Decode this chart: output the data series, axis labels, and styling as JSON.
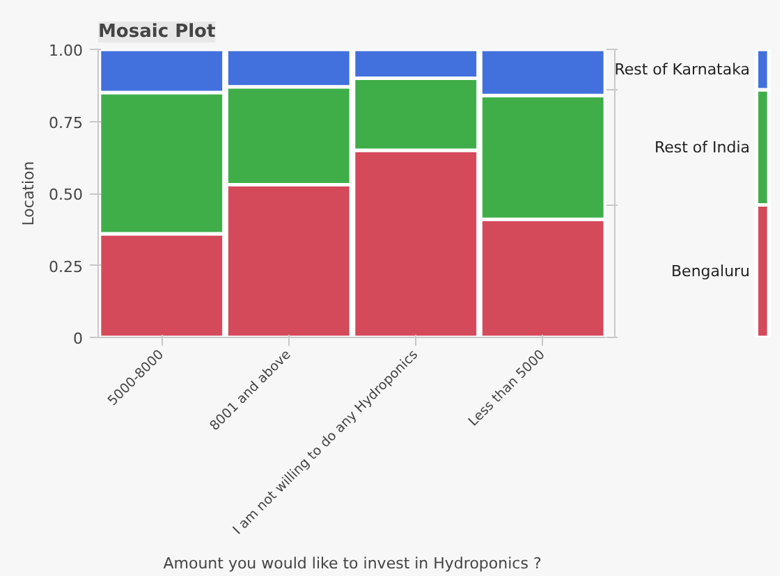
{
  "chart_data": [
    {
      "type": "bar",
      "title": "Mosaic Plot",
      "xlabel": "Amount you would like to invest in Hydroponics ?",
      "ylabel": "Location",
      "stacked": true,
      "categories": [
        "5000-8000",
        "8001 and above",
        "I am not willing to do any Hydroponics",
        "Less than 5000"
      ],
      "series": [
        {
          "color": "#d44a5a",
          "values": [
            0.36,
            0.53,
            0.65,
            0.41
          ]
        },
        {
          "color": "#3fae49",
          "values": [
            0.49,
            0.34,
            0.25,
            0.43
          ]
        },
        {
          "color": "#4270dd",
          "values": [
            0.15,
            0.13,
            0.1,
            0.16
          ]
        }
      ],
      "ylim": [
        0,
        1
      ],
      "yticks": [
        0,
        {
          "value": 0.25,
          "label": "0.25"
        },
        {
          "value": 0.5,
          "label": "0.50"
        },
        {
          "value": 0.75,
          "label": "0.75"
        },
        {
          "value": 1,
          "label": "1.00"
        }
      ]
    },
    {
      "type": "bar",
      "stacked": true,
      "categories": [
        null
      ],
      "series": [
        {
          "name": "Bengaluru",
          "color": "#d44a5a",
          "values": [
            0.46
          ]
        },
        {
          "name": "Rest of India",
          "color": "#3fae49",
          "values": [
            0.4
          ]
        },
        {
          "name": "Rest of Karnataka",
          "color": "#4270dd",
          "values": [
            0.14
          ]
        }
      ],
      "ylim": [
        0,
        1
      ],
      "tick_labels": false
    }
  ]
}
